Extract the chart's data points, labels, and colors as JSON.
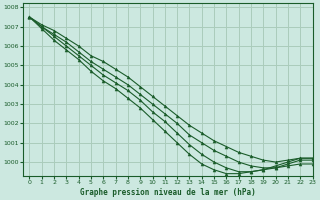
{
  "title": "Graphe pression niveau de la mer (hPa)",
  "background_color": "#cce8e0",
  "grid_color": "#aaccbb",
  "line_color": "#1a5c2a",
  "xlim": [
    -0.5,
    23
  ],
  "ylim": [
    999.3,
    1008.2
  ],
  "yticks": [
    1000,
    1001,
    1002,
    1003,
    1004,
    1005,
    1006,
    1007,
    1008
  ],
  "xticks": [
    0,
    1,
    2,
    3,
    4,
    5,
    6,
    7,
    8,
    9,
    10,
    11,
    12,
    13,
    14,
    15,
    16,
    17,
    18,
    19,
    20,
    21,
    22,
    23
  ],
  "lines": [
    [
      1007.5,
      1007.1,
      1006.8,
      1006.4,
      1006.0,
      1005.5,
      1005.2,
      1004.8,
      1004.4,
      1003.9,
      1003.4,
      1002.9,
      1002.4,
      1001.9,
      1001.5,
      1001.1,
      1000.8,
      1000.5,
      1000.3,
      1000.1,
      1000.0,
      1000.1,
      1000.2,
      1000.2
    ],
    [
      1007.5,
      1007.0,
      1006.6,
      1006.2,
      1005.7,
      1005.2,
      1004.8,
      1004.4,
      1004.0,
      1003.5,
      1003.0,
      1002.5,
      1002.0,
      1001.4,
      1001.0,
      1000.6,
      1000.3,
      1000.0,
      999.8,
      999.7,
      999.7,
      999.8,
      999.9,
      999.9
    ],
    [
      1007.5,
      1007.0,
      1006.5,
      1006.0,
      1005.5,
      1005.0,
      1004.5,
      1004.1,
      1003.7,
      1003.2,
      1002.6,
      1002.1,
      1001.5,
      1000.9,
      1000.4,
      1000.0,
      999.7,
      999.5,
      999.5,
      999.6,
      999.7,
      999.9,
      1000.1,
      1000.1
    ],
    [
      1007.5,
      1006.9,
      1006.3,
      1005.8,
      1005.3,
      1004.7,
      1004.2,
      1003.8,
      1003.3,
      1002.8,
      1002.2,
      1001.6,
      1001.0,
      1000.4,
      999.9,
      999.6,
      999.4,
      999.4,
      999.5,
      999.6,
      999.8,
      1000.0,
      1000.2,
      1000.2
    ]
  ]
}
